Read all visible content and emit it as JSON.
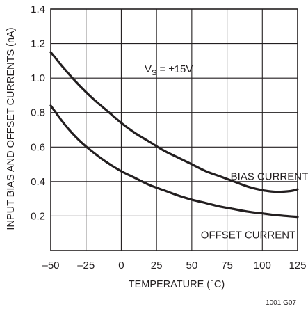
{
  "chart_data": {
    "type": "line",
    "xlabel": "TEMPERATURE (°C)",
    "ylabel": "INPUT BIAS AND OFFSET CURRENTS (nA)",
    "xlim": [
      -50,
      125
    ],
    "ylim": [
      0,
      1.4
    ],
    "x_ticks": [
      "–50",
      "–25",
      "0",
      "25",
      "50",
      "75",
      "100",
      "125"
    ],
    "y_ticks": [
      "0.2",
      "0.4",
      "0.6",
      "0.8",
      "1.0",
      "1.2",
      "1.4"
    ],
    "x_tick_values": [
      -50,
      -25,
      0,
      25,
      50,
      75,
      100,
      125
    ],
    "y_tick_values": [
      0.2,
      0.4,
      0.6,
      0.8,
      1.0,
      1.2,
      1.4
    ],
    "grid": true,
    "annotation": {
      "main": "V",
      "sub": "S",
      "rest": " = ±15V"
    },
    "series": [
      {
        "name": "BIAS CURRENT",
        "x": [
          -50,
          -40,
          -30,
          -20,
          -10,
          0,
          10,
          20,
          30,
          40,
          50,
          60,
          70,
          80,
          90,
          100,
          110,
          120,
          125
        ],
        "y": [
          1.15,
          1.05,
          0.96,
          0.88,
          0.81,
          0.74,
          0.68,
          0.63,
          0.58,
          0.54,
          0.5,
          0.46,
          0.43,
          0.4,
          0.37,
          0.35,
          0.34,
          0.345,
          0.355
        ]
      },
      {
        "name": "OFFSET CURRENT",
        "x": [
          -50,
          -40,
          -30,
          -20,
          -10,
          0,
          10,
          20,
          30,
          40,
          50,
          60,
          70,
          80,
          90,
          100,
          110,
          125
        ],
        "y": [
          0.84,
          0.73,
          0.64,
          0.57,
          0.51,
          0.46,
          0.42,
          0.38,
          0.35,
          0.32,
          0.295,
          0.275,
          0.255,
          0.24,
          0.225,
          0.215,
          0.205,
          0.195
        ]
      }
    ]
  },
  "footer_code": "1001 G07"
}
